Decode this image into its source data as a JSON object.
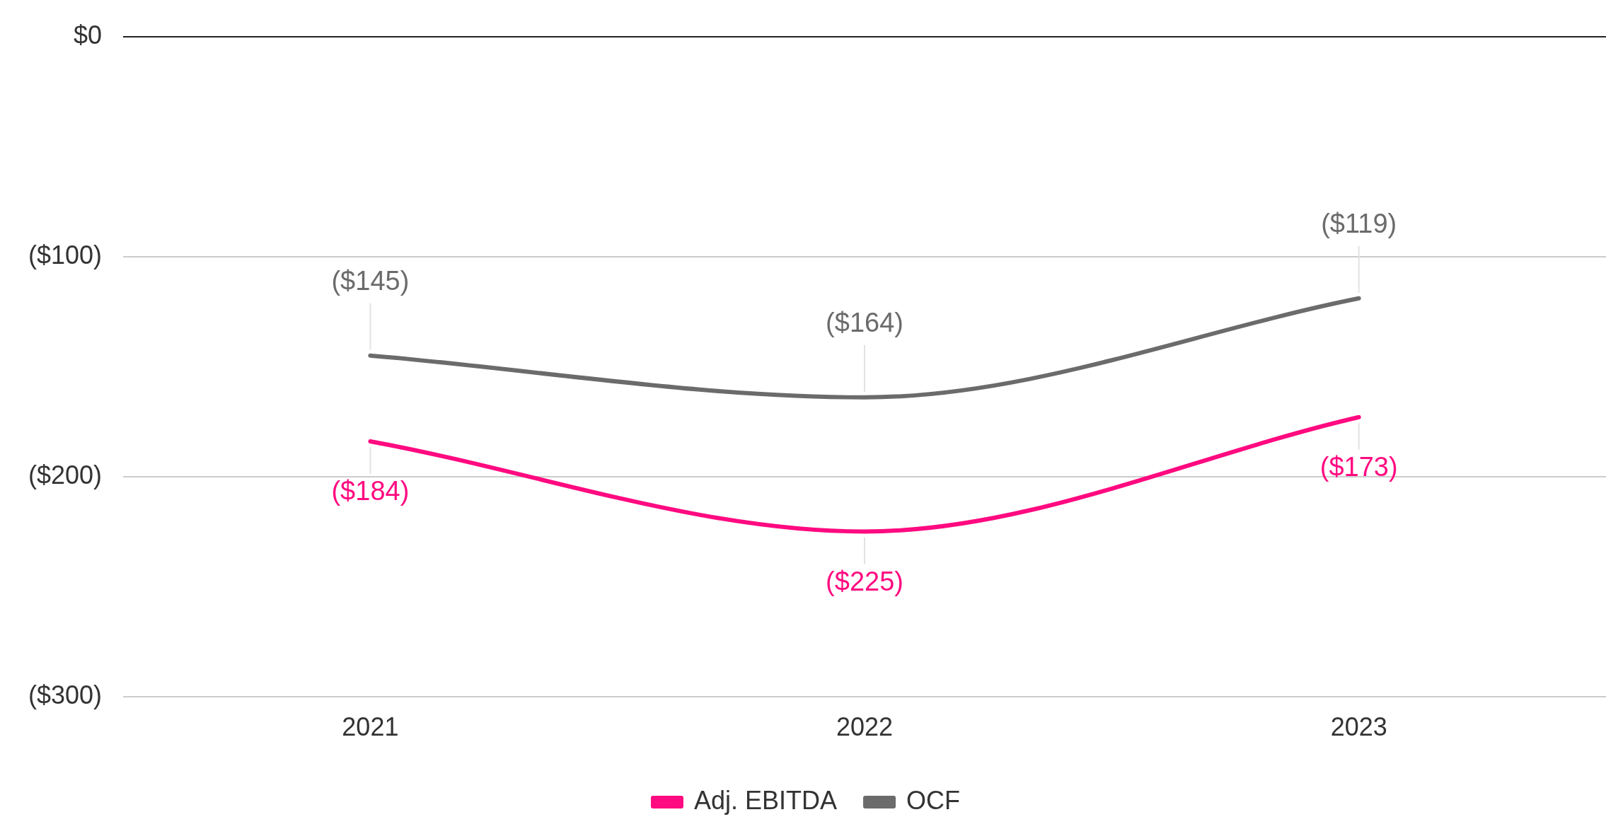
{
  "chart_data": {
    "type": "line",
    "categories": [
      "2021",
      "2022",
      "2023"
    ],
    "series": [
      {
        "name": "Adj. EBITDA",
        "color": "#ff0a80",
        "values": [
          -184,
          -225,
          -173
        ],
        "value_labels": [
          "($184)",
          "($225)",
          "($173)"
        ]
      },
      {
        "name": "OCF",
        "color": "#6b6b6b",
        "values": [
          -145,
          -164,
          -119
        ],
        "value_labels": [
          "($145)",
          "($164)",
          "($119)"
        ]
      }
    ],
    "ylim": [
      -300,
      0
    ],
    "yticks": [
      {
        "value": -300,
        "label": "($300)"
      },
      {
        "value": -200,
        "label": "($200)"
      },
      {
        "value": -100,
        "label": "($100)"
      },
      {
        "value": 0,
        "label": "$0"
      }
    ],
    "grid": "y",
    "legend": "bottom",
    "marker": "none",
    "line_style": "solid"
  }
}
